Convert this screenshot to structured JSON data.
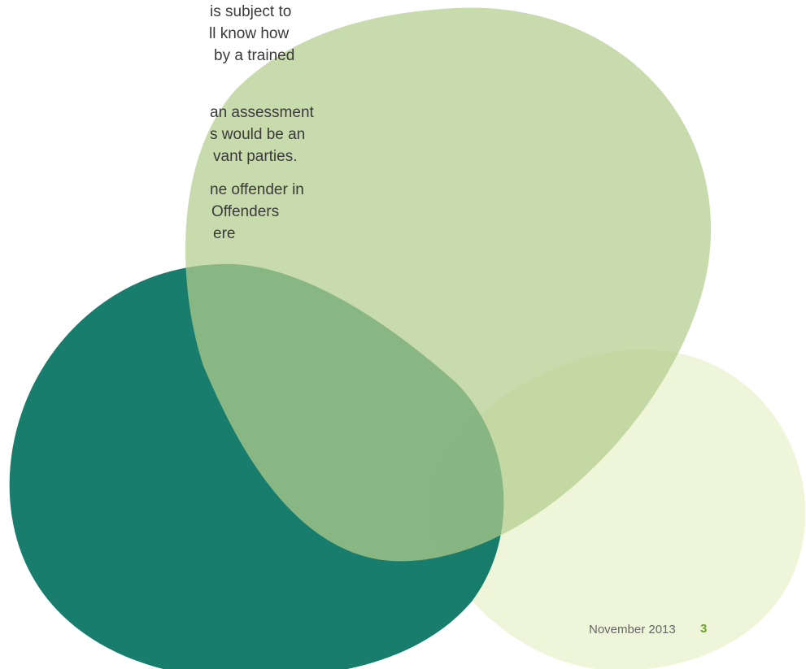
{
  "body": {
    "paragraphs": [
      [
        "is subject to",
        "ll know how",
        "by a trained"
      ],
      [
        "an assessment",
        "s would be an",
        "vant parties."
      ],
      [
        "ne offender in",
        "Offenders",
        "ere"
      ]
    ]
  },
  "footer": {
    "date": "November 2013",
    "page_number": "3"
  }
}
